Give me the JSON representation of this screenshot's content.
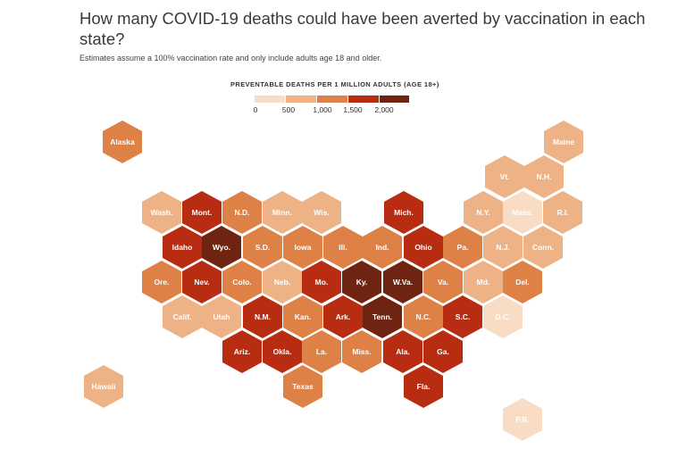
{
  "header": {
    "title": "How many COVID-19 deaths could have been averted by vaccination in each state?",
    "subtitle": "Estimates assume a 100% vaccination rate and only include adults age 18 and older."
  },
  "legend": {
    "title": "PREVENTABLE DEATHS PER 1 MILLION ADULTS (AGE 18+)",
    "ticks": [
      "0",
      "500",
      "1,000",
      "1,500",
      "2,000"
    ],
    "colors": [
      "#f8dcc4",
      "#edb387",
      "#de8146",
      "#b82c12",
      "#6e2410"
    ]
  },
  "states": [
    {
      "id": "ak",
      "label": "Alaska",
      "level": 2
    },
    {
      "id": "me",
      "label": "Maine",
      "level": 1
    },
    {
      "id": "vt",
      "label": "Vt.",
      "level": 1
    },
    {
      "id": "nh",
      "label": "N.H.",
      "level": 1
    },
    {
      "id": "wa",
      "label": "Wash.",
      "level": 1
    },
    {
      "id": "mt",
      "label": "Mont.",
      "level": 3
    },
    {
      "id": "nd",
      "label": "N.D.",
      "level": 2
    },
    {
      "id": "mn",
      "label": "Minn.",
      "level": 1
    },
    {
      "id": "wi",
      "label": "Wis.",
      "level": 1
    },
    {
      "id": "mi",
      "label": "Mich.",
      "level": 3
    },
    {
      "id": "ny",
      "label": "N.Y.",
      "level": 1
    },
    {
      "id": "ma",
      "label": "Mass.",
      "level": 0
    },
    {
      "id": "ri",
      "label": "R.I.",
      "level": 1
    },
    {
      "id": "id",
      "label": "Idaho",
      "level": 3
    },
    {
      "id": "wy",
      "label": "Wyo.",
      "level": 4
    },
    {
      "id": "sd",
      "label": "S.D.",
      "level": 2
    },
    {
      "id": "ia",
      "label": "Iowa",
      "level": 2
    },
    {
      "id": "il",
      "label": "Ill.",
      "level": 2
    },
    {
      "id": "in",
      "label": "Ind.",
      "level": 2
    },
    {
      "id": "oh",
      "label": "Ohio",
      "level": 3
    },
    {
      "id": "pa",
      "label": "Pa.",
      "level": 2
    },
    {
      "id": "nj",
      "label": "N.J.",
      "level": 1
    },
    {
      "id": "ct",
      "label": "Conn.",
      "level": 1
    },
    {
      "id": "or",
      "label": "Ore.",
      "level": 2
    },
    {
      "id": "nv",
      "label": "Nev.",
      "level": 3
    },
    {
      "id": "co",
      "label": "Colo.",
      "level": 2
    },
    {
      "id": "ne",
      "label": "Neb.",
      "level": 1
    },
    {
      "id": "mo",
      "label": "Mo.",
      "level": 3
    },
    {
      "id": "ky",
      "label": "Ky.",
      "level": 4
    },
    {
      "id": "wv",
      "label": "W.Va.",
      "level": 4
    },
    {
      "id": "va",
      "label": "Va.",
      "level": 2
    },
    {
      "id": "md",
      "label": "Md.",
      "level": 1
    },
    {
      "id": "de",
      "label": "Del.",
      "level": 2
    },
    {
      "id": "ca",
      "label": "Calif.",
      "level": 1
    },
    {
      "id": "ut",
      "label": "Utah",
      "level": 1
    },
    {
      "id": "nm",
      "label": "N.M.",
      "level": 3
    },
    {
      "id": "ks",
      "label": "Kan.",
      "level": 2
    },
    {
      "id": "ar",
      "label": "Ark.",
      "level": 3
    },
    {
      "id": "tn",
      "label": "Tenn.",
      "level": 4
    },
    {
      "id": "nc",
      "label": "N.C.",
      "level": 2
    },
    {
      "id": "sc",
      "label": "S.C.",
      "level": 3
    },
    {
      "id": "dc",
      "label": "D.C.",
      "level": 0
    },
    {
      "id": "az",
      "label": "Ariz.",
      "level": 3
    },
    {
      "id": "ok",
      "label": "Okla.",
      "level": 3
    },
    {
      "id": "la",
      "label": "La.",
      "level": 2
    },
    {
      "id": "ms",
      "label": "Miss.",
      "level": 2
    },
    {
      "id": "al",
      "label": "Ala.",
      "level": 3
    },
    {
      "id": "ga",
      "label": "Ga.",
      "level": 3
    },
    {
      "id": "hi",
      "label": "Hawaii",
      "level": 1
    },
    {
      "id": "tx",
      "label": "Texas",
      "level": 2
    },
    {
      "id": "fl",
      "label": "Fla.",
      "level": 3
    },
    {
      "id": "pr",
      "label": "P.R.",
      "level": 0
    }
  ]
}
